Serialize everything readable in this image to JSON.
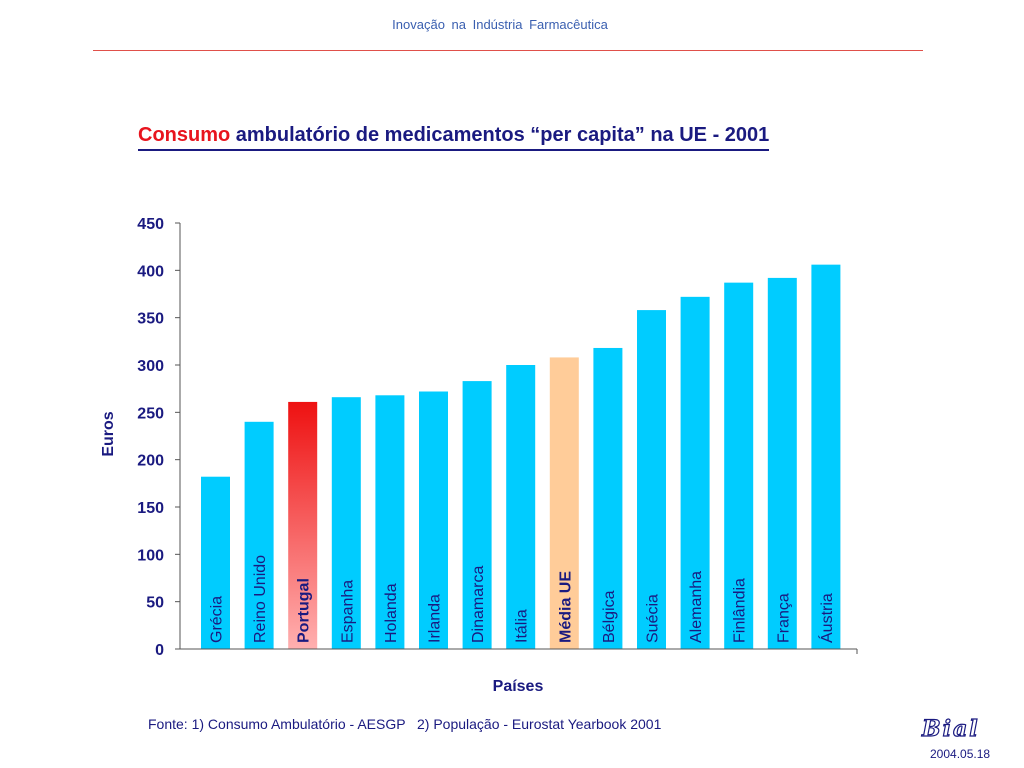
{
  "header": {
    "title": "Inovação  na  Indústria  Farmacêutica"
  },
  "chart_data": {
    "type": "bar",
    "title_accent": "Consumo",
    "title_rest": " ambulatório de medicamentos “per capita” na UE - 2001",
    "xlabel": "Países",
    "ylabel": "Euros",
    "ylim": [
      0,
      450
    ],
    "yticks": [
      0,
      50,
      100,
      150,
      200,
      250,
      300,
      350,
      400,
      450
    ],
    "categories": [
      "Grécia",
      "Reino Unido",
      "Portugal",
      "Espanha",
      "Holanda",
      "Irlanda",
      "Dinamarca",
      "Itália",
      "Média UE",
      "Bélgica",
      "Suécia",
      "Alemanha",
      "Finlândia",
      "França",
      "Áustria"
    ],
    "values": [
      182,
      240,
      261,
      266,
      268,
      272,
      283,
      300,
      308,
      318,
      358,
      372,
      387,
      392,
      406
    ],
    "highlight": [
      "Portugal",
      "Média UE"
    ],
    "colors": {
      "default": "#00ccff",
      "Portugal_top": "#ee1111",
      "Portugal_bottom": "#ffb0b0",
      "Média UE": "#ffcc99",
      "text": "#1a1a80",
      "axis": "#555555"
    },
    "grid": false,
    "legend": "none"
  },
  "footer": {
    "source": "Fonte: 1) Consumo Ambulatório - AESGP   2) População - Eurostat Yearbook 2001",
    "logo": "Bial",
    "date": "2004.05.18"
  }
}
